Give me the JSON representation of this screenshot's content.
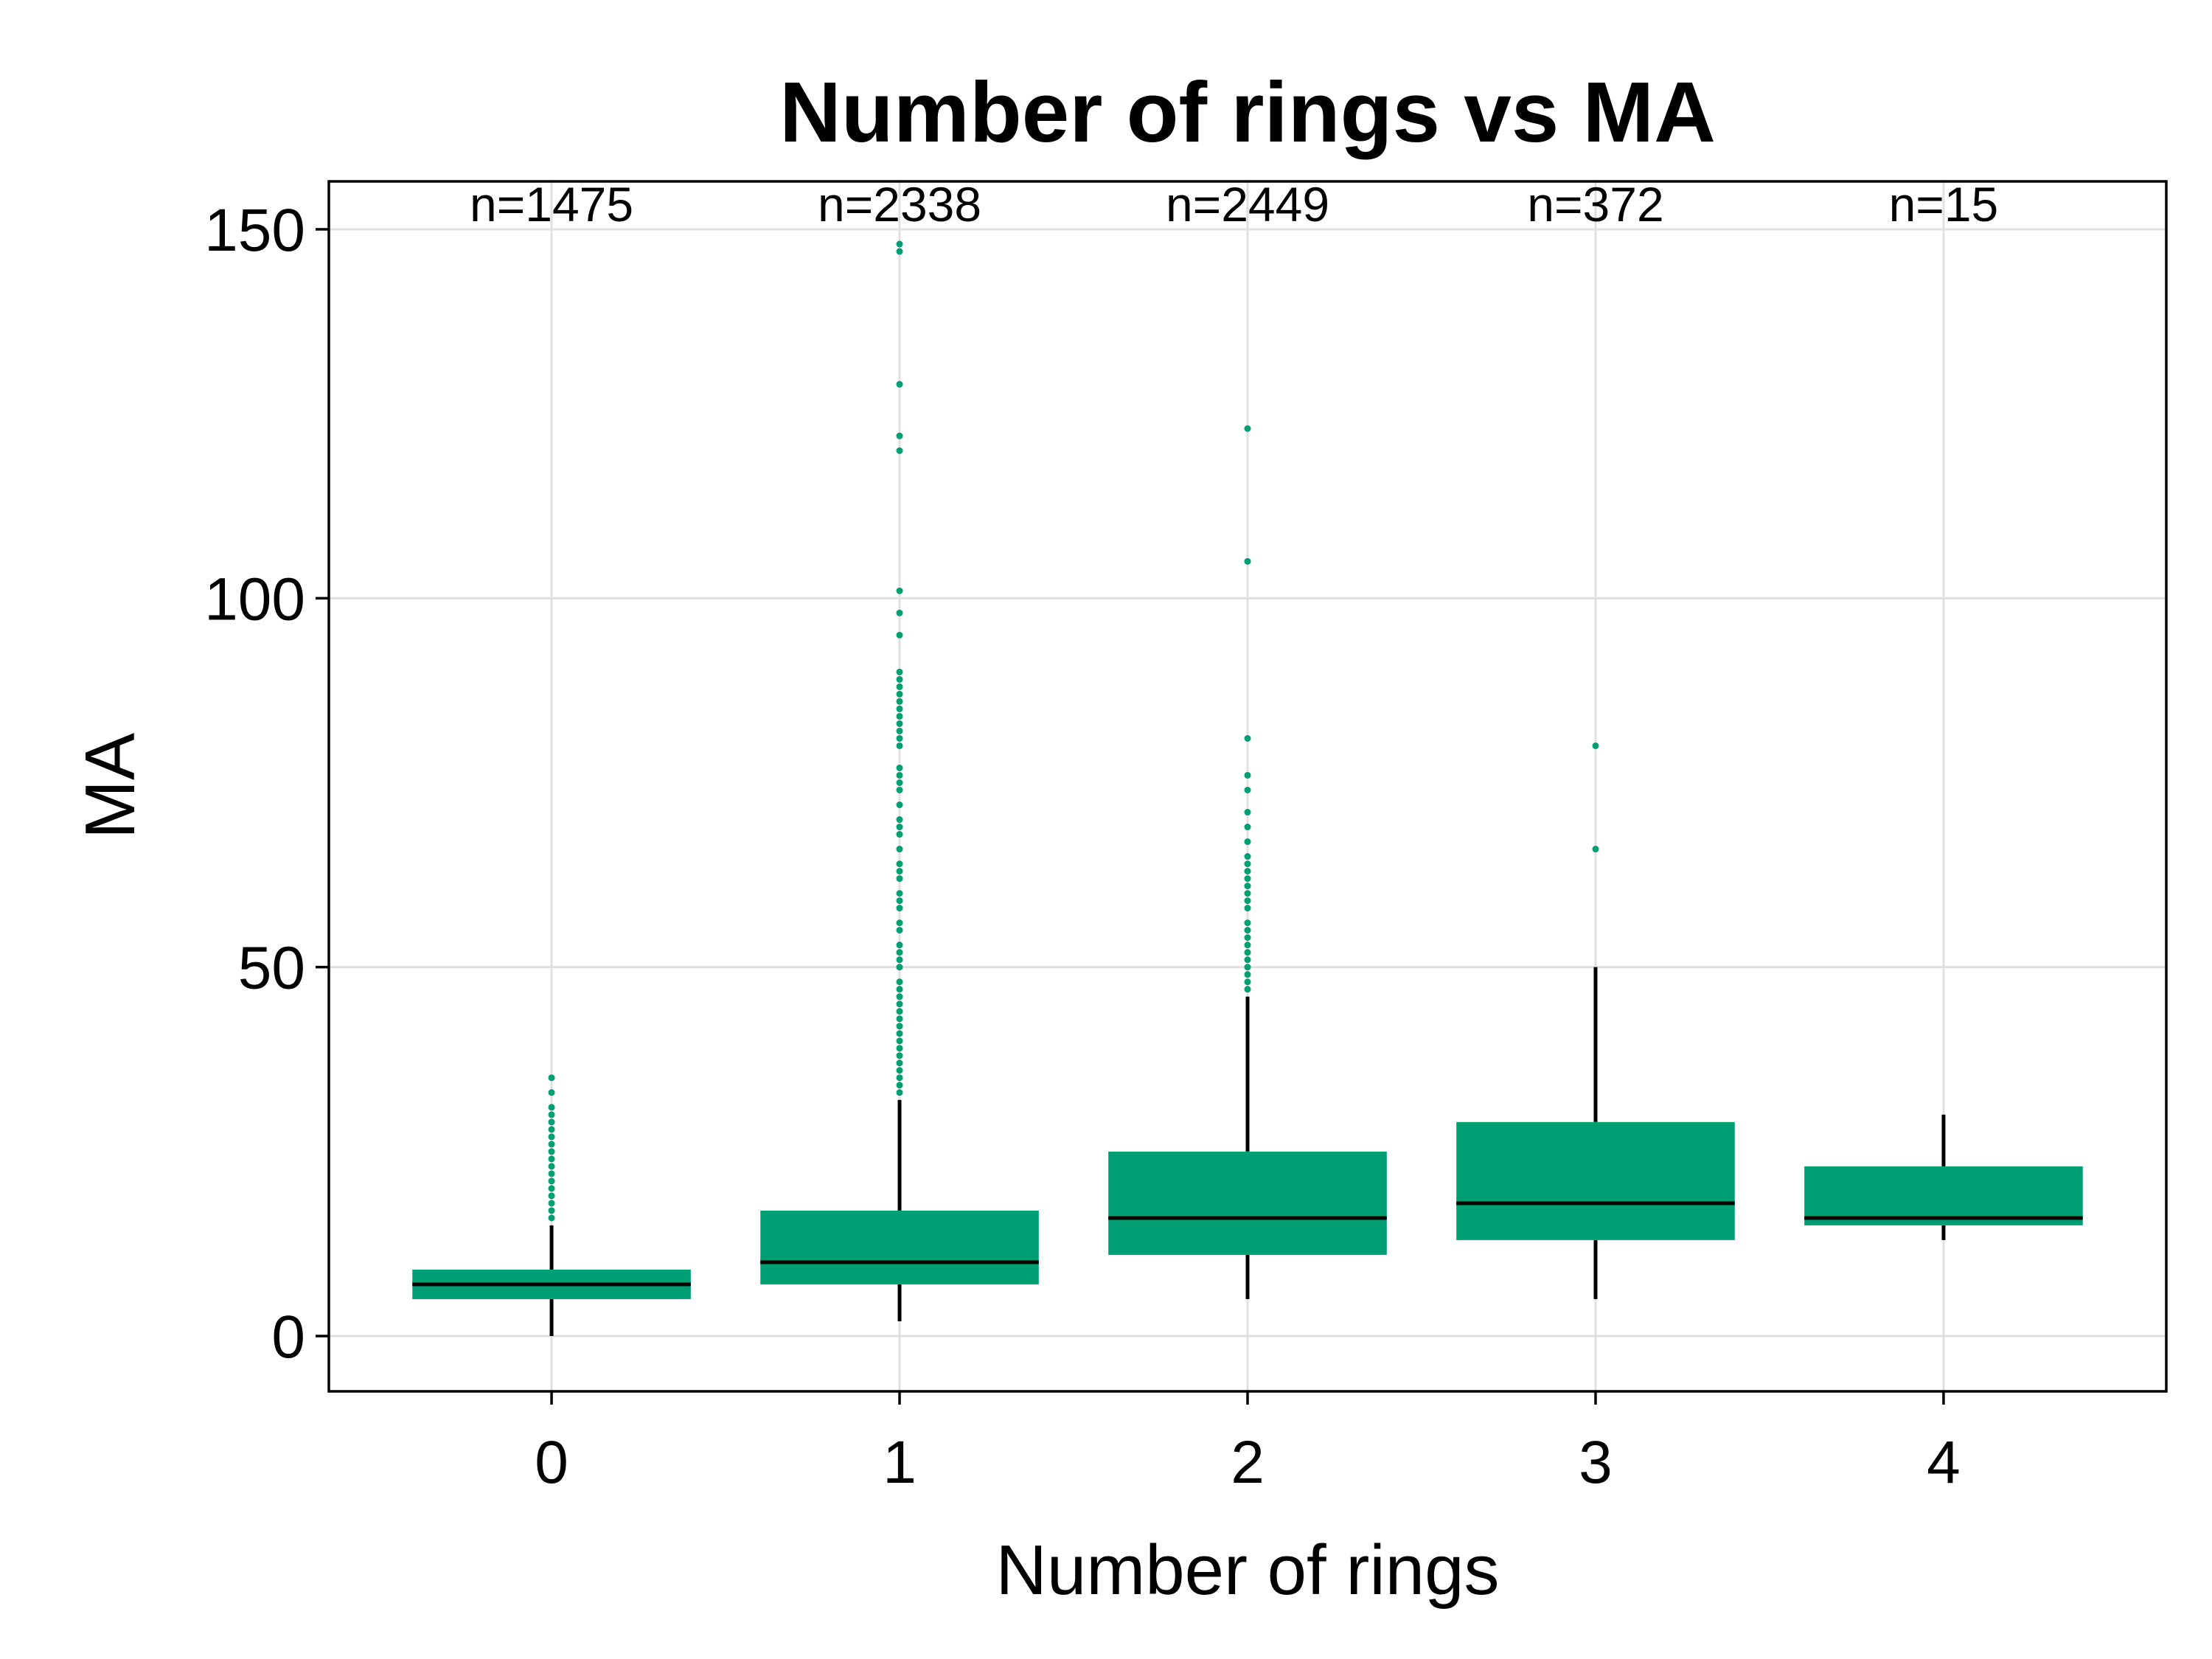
{
  "chart_data": {
    "type": "box",
    "title": "Number of rings vs MA",
    "xlabel": "Number of rings",
    "ylabel": "MA",
    "categories": [
      "0",
      "1",
      "2",
      "3",
      "4"
    ],
    "xlim": [
      -0.64,
      4.64
    ],
    "ylim": [
      -7.5,
      156.5
    ],
    "yticks": [
      0,
      50,
      100,
      150
    ],
    "grid": true,
    "color": "#009e73",
    "groups": [
      {
        "label": "0",
        "n_label": "n=1475",
        "whisker_low": 0,
        "q1": 5,
        "median": 7,
        "q3": 9,
        "whisker_high": 15,
        "outliers": [
          16,
          17,
          18,
          19,
          20,
          21,
          22,
          23,
          24,
          25,
          26,
          27,
          28,
          29,
          30,
          31,
          33,
          35
        ]
      },
      {
        "label": "1",
        "n_label": "n=2338",
        "whisker_low": 2,
        "q1": 7,
        "median": 10,
        "q3": 17,
        "whisker_high": 32,
        "outliers": [
          33,
          34,
          35,
          36,
          37,
          38,
          39,
          40,
          41,
          42,
          43,
          44,
          45,
          46,
          47,
          48,
          50,
          51,
          52,
          53,
          55,
          56,
          58,
          59,
          60,
          62,
          63,
          64,
          66,
          68,
          69,
          70,
          72,
          74,
          75,
          76,
          77,
          80,
          81,
          82,
          83,
          84,
          85,
          86,
          87,
          88,
          89,
          90,
          95,
          98,
          101,
          120,
          122,
          129,
          147,
          148
        ]
      },
      {
        "label": "2",
        "n_label": "n=2449",
        "whisker_low": 5,
        "q1": 11,
        "median": 16,
        "q3": 25,
        "whisker_high": 46,
        "outliers": [
          47,
          48,
          49,
          50,
          51,
          52,
          53,
          54,
          55,
          56,
          58,
          59,
          60,
          61,
          62,
          63,
          64,
          65,
          67,
          69,
          71,
          74,
          76,
          81,
          105,
          123
        ]
      },
      {
        "label": "3",
        "n_label": "n=372",
        "whisker_low": 5,
        "q1": 13,
        "median": 18,
        "q3": 29,
        "whisker_high": 50,
        "outliers": [
          66,
          80
        ]
      },
      {
        "label": "4",
        "n_label": "n=15",
        "whisker_low": 13,
        "q1": 15,
        "median": 16,
        "q3": 23,
        "whisker_high": 30,
        "outliers": []
      }
    ]
  }
}
